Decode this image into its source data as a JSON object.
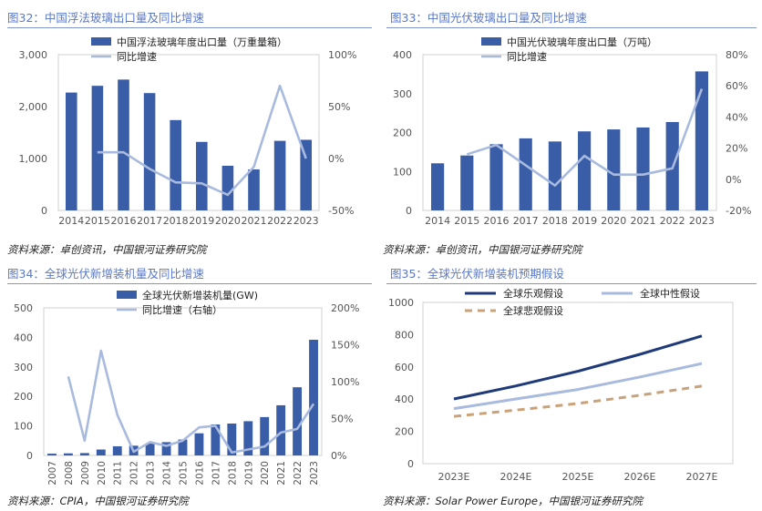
{
  "panels": [
    {
      "title": "图32：中国浮法玻璃出口量及同比增速",
      "source": "资料来源：卓创资讯，中国银河证券研究院",
      "chart_data": {
        "type": "bar+line",
        "categories": [
          "2014",
          "2015",
          "2016",
          "2017",
          "2018",
          "2019",
          "2020",
          "2021",
          "2022",
          "2023"
        ],
        "series": [
          {
            "name": "中国浮法玻璃年度出口量（万重量箱）",
            "type": "bar",
            "axis": "left",
            "values": [
              2270,
              2400,
              2520,
              2260,
              1740,
              1320,
              860,
              790,
              1340,
              1360
            ]
          },
          {
            "name": "同比增速",
            "type": "line",
            "axis": "right",
            "values": [
              null,
              6,
              6,
              -10,
              -23,
              -24,
              -35,
              -8,
              70,
              0
            ]
          }
        ],
        "ylim": [
          0,
          3000
        ],
        "yticks": [
          0,
          1000,
          2000,
          3000
        ],
        "ytick_labels": [
          "0",
          "1,000",
          "2,000",
          "3,000"
        ],
        "y2lim": [
          -50,
          100
        ],
        "y2ticks": [
          -50,
          0,
          50,
          100
        ],
        "y2tick_labels": [
          "-50%",
          "0%",
          "50%",
          "100%"
        ]
      }
    },
    {
      "title": "图33：中国光伏玻璃出口量及同比增速",
      "source": "资料来源：卓创资讯，中国银河证券研究院",
      "chart_data": {
        "type": "bar+line",
        "categories": [
          "2014",
          "2015",
          "2016",
          "2017",
          "2018",
          "2019",
          "2020",
          "2021",
          "2022",
          "2023"
        ],
        "series": [
          {
            "name": "中国光伏玻璃年度出口量（万吨）",
            "type": "bar",
            "axis": "left",
            "values": [
              121,
              141,
              170,
              185,
              177,
              203,
              208,
              213,
              227,
              357
            ]
          },
          {
            "name": "同比增速",
            "type": "line",
            "axis": "right",
            "values": [
              null,
              16,
              22,
              9,
              -4,
              15,
              3,
              3,
              7,
              58
            ]
          }
        ],
        "ylim": [
          0,
          400
        ],
        "yticks": [
          0,
          100,
          200,
          300,
          400
        ],
        "ytick_labels": [
          "0",
          "100",
          "200",
          "300",
          "400"
        ],
        "y2lim": [
          -20,
          80
        ],
        "y2ticks": [
          -20,
          0,
          20,
          40,
          60,
          80
        ],
        "y2tick_labels": [
          "-20%",
          "0%",
          "20%",
          "40%",
          "60%",
          "80%"
        ]
      }
    },
    {
      "title": "图34：全球光伏新增装机量及同比增速",
      "source": "资料来源：CPIA，中国银河证券研究院",
      "chart_data": {
        "type": "bar+line",
        "categories": [
          "2007",
          "2008",
          "2009",
          "2010",
          "2011",
          "2012",
          "2013",
          "2014",
          "2015",
          "2016",
          "2017",
          "2018",
          "2019",
          "2020",
          "2021",
          "2022",
          "2023"
        ],
        "series": [
          {
            "name": "全球光伏新增装机量(GW)",
            "type": "bar",
            "axis": "left",
            "values": [
              6,
              7,
              8,
              20,
              31,
              33,
              40,
              45,
              54,
              75,
              105,
              108,
              116,
              130,
              170,
              231,
              392
            ]
          },
          {
            "name": "同比增速（右轴）",
            "type": "line",
            "axis": "right",
            "values": [
              null,
              107,
              20,
              142,
              55,
              5,
              18,
              13,
              20,
              38,
              40,
              4,
              8,
              12,
              31,
              36,
              70
            ]
          }
        ],
        "ylim": [
          0,
          500
        ],
        "yticks": [
          0,
          100,
          200,
          300,
          400,
          500
        ],
        "ytick_labels": [
          "0",
          "100",
          "200",
          "300",
          "400",
          "500"
        ],
        "y2lim": [
          0,
          200
        ],
        "y2ticks": [
          0,
          50,
          100,
          150,
          200
        ],
        "y2tick_labels": [
          "0%",
          "50%",
          "100%",
          "150%",
          "200%"
        ]
      }
    },
    {
      "title": "图35：全球光伏新增装机预期假设",
      "source": "资料来源：Solar Power Europe，中国银河证券研究院",
      "chart_data": {
        "type": "line",
        "categories": [
          "2023E",
          "2024E",
          "2025E",
          "2026E",
          "2027E"
        ],
        "series": [
          {
            "name": "全球乐观假设",
            "values": [
              401,
              482,
              573,
              678,
              792
            ]
          },
          {
            "name": "全球中性假设",
            "values": [
              341,
              401,
              460,
              537,
              621
            ]
          },
          {
            "name": "全球悲观假设",
            "values": [
              293,
              332,
              373,
              424,
              481
            ]
          }
        ],
        "ylim": [
          0,
          1000
        ],
        "yticks": [
          0,
          200,
          400,
          600,
          800,
          1000
        ],
        "ytick_labels": [
          "0",
          "200",
          "400",
          "600",
          "800",
          "1000"
        ]
      }
    }
  ],
  "colors": {
    "bar": "#3a5da8",
    "line": "#a9badf",
    "optimistic": "#1f3a7a",
    "neutral": "#a9badf",
    "pessimistic": "#c9a27a",
    "title": "#5a78c8",
    "axis_text": "#555555"
  }
}
